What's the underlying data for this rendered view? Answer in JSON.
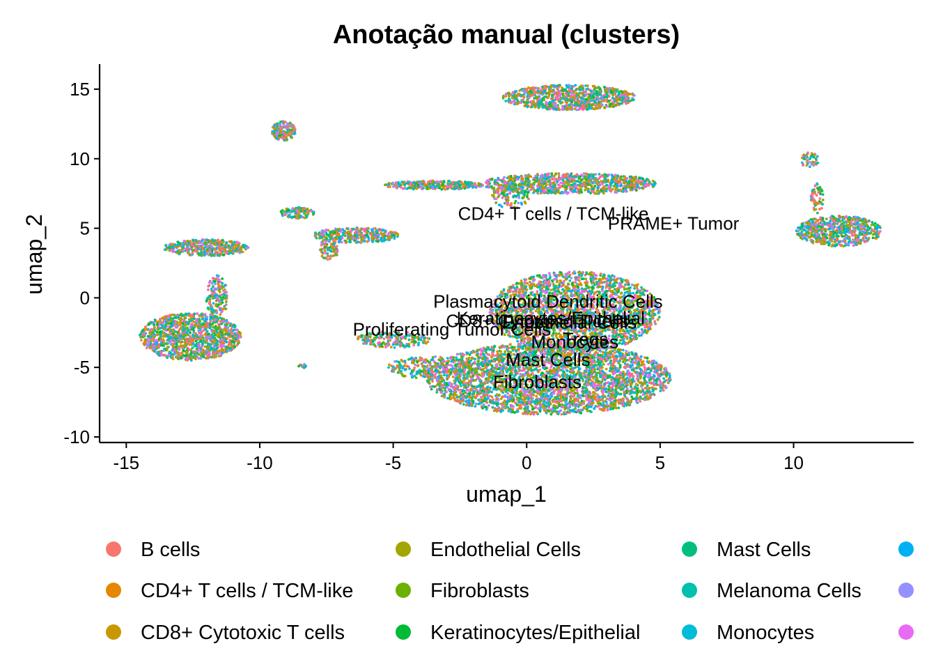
{
  "chart_data": {
    "type": "scatter",
    "title": "Anotação manual (clusters)",
    "xlabel": "umap_1",
    "ylabel": "umap_2",
    "xlim": [
      -16,
      14.5
    ],
    "ylim": [
      -10.4,
      16.8
    ],
    "xticks": [
      {
        "value": -15,
        "label": "-15"
      },
      {
        "value": -10,
        "label": "-10"
      },
      {
        "value": -5,
        "label": "-5"
      },
      {
        "value": 0,
        "label": "0"
      },
      {
        "value": 5,
        "label": "5"
      },
      {
        "value": 10,
        "label": "10"
      }
    ],
    "yticks": [
      {
        "value": -10,
        "label": "-10"
      },
      {
        "value": -5,
        "label": "-5"
      },
      {
        "value": 0,
        "label": "0"
      },
      {
        "value": 5,
        "label": "5"
      },
      {
        "value": 10,
        "label": "10"
      },
      {
        "value": 15,
        "label": "15"
      }
    ],
    "grid": false,
    "legend_position": "bottom",
    "legend": [
      {
        "name": "B cells",
        "color": "#F8766D"
      },
      {
        "name": "CD4+ T cells / TCM-like",
        "color": "#E58700"
      },
      {
        "name": "CD8+ Cytotoxic T cells",
        "color": "#C99800"
      },
      {
        "name": "Endothelial Cells",
        "color": "#A3A500"
      },
      {
        "name": "Fibroblasts",
        "color": "#6BB100"
      },
      {
        "name": "Keratinocytes/Epithelial",
        "color": "#00BA38"
      },
      {
        "name": "Mast Cells",
        "color": "#00BF7D"
      },
      {
        "name": "Melanoma Cells",
        "color": "#00C0AF"
      },
      {
        "name": "Monocytes",
        "color": "#00BCD8"
      },
      {
        "name": "",
        "color": "#00B0F6"
      },
      {
        "name": "",
        "color": "#9590FF"
      },
      {
        "name": "",
        "color": "#E76BF3"
      }
    ],
    "point_colors": [
      "#F8766D",
      "#E58700",
      "#C99800",
      "#A3A500",
      "#6BB100",
      "#00BA38",
      "#00BF7D",
      "#00C0AF",
      "#00BCD8",
      "#00B0F6",
      "#9590FF",
      "#E76BF3",
      "#FF62BC"
    ],
    "clusters": [
      {
        "cx": 1.6,
        "cy": 14.4,
        "rx": 2.5,
        "ry": 0.9,
        "n": 900
      },
      {
        "cx": -9.1,
        "cy": 12.0,
        "rx": 0.45,
        "ry": 0.7,
        "n": 160
      },
      {
        "cx": 1.6,
        "cy": 8.2,
        "rx": 3.3,
        "ry": 0.75,
        "n": 900
      },
      {
        "cx": -3.5,
        "cy": 8.1,
        "rx": 1.9,
        "ry": 0.32,
        "n": 300
      },
      {
        "cx": -0.6,
        "cy": 7.3,
        "rx": 0.7,
        "ry": 0.9,
        "n": 110
      },
      {
        "cx": -8.6,
        "cy": 6.1,
        "rx": 0.65,
        "ry": 0.4,
        "n": 110
      },
      {
        "cx": -6.4,
        "cy": 4.5,
        "rx": 1.6,
        "ry": 0.55,
        "n": 320
      },
      {
        "cx": -7.4,
        "cy": 3.5,
        "rx": 0.35,
        "ry": 0.8,
        "n": 90
      },
      {
        "cx": -12.0,
        "cy": 3.6,
        "rx": 1.6,
        "ry": 0.6,
        "n": 420
      },
      {
        "cx": -11.6,
        "cy": 0.0,
        "rx": 0.4,
        "ry": 1.6,
        "n": 170
      },
      {
        "cx": -12.6,
        "cy": -2.8,
        "rx": 1.9,
        "ry": 1.7,
        "n": 1300
      },
      {
        "cx": -8.4,
        "cy": -4.9,
        "rx": 0.15,
        "ry": 0.15,
        "n": 12
      },
      {
        "cx": -5.0,
        "cy": -3.0,
        "rx": 1.4,
        "ry": 0.6,
        "n": 220
      },
      {
        "cx": -3.6,
        "cy": -5.0,
        "rx": 1.6,
        "ry": 0.8,
        "n": 260
      },
      {
        "cx": 1.8,
        "cy": -1.0,
        "rx": 3.2,
        "ry": 2.9,
        "n": 2500
      },
      {
        "cx": 0.8,
        "cy": -5.8,
        "rx": 4.6,
        "ry": 2.6,
        "n": 3600
      },
      {
        "cx": 11.7,
        "cy": 4.8,
        "rx": 1.6,
        "ry": 1.1,
        "n": 650
      },
      {
        "cx": 10.6,
        "cy": 9.9,
        "rx": 0.35,
        "ry": 0.55,
        "n": 45
      },
      {
        "cx": 10.9,
        "cy": 7.2,
        "rx": 0.25,
        "ry": 1.1,
        "n": 60
      }
    ],
    "cluster_labels": [
      {
        "text": "CD4+ T cells / TCM-like",
        "x": 1.0,
        "y": 5.6
      },
      {
        "text": "PRAME+ Tumor",
        "x": 5.5,
        "y": 4.9
      },
      {
        "text": "Plasmacytoid Dendritic Cells",
        "x": 0.8,
        "y": -0.7
      },
      {
        "text": "Keratinocytes/Epithelial",
        "x": 0.9,
        "y": -1.9
      },
      {
        "text": "CD8+ Cytotoxic T cells",
        "x": 0.4,
        "y": -2.1
      },
      {
        "text": "Endothelial Cells",
        "x": 1.6,
        "y": -2.2
      },
      {
        "text": "Proliferating Tumor Cells",
        "x": -2.8,
        "y": -2.7
      },
      {
        "text": "Tregs",
        "x": 2.2,
        "y": -3.4
      },
      {
        "text": "Monocytes",
        "x": 1.8,
        "y": -3.6
      },
      {
        "text": "Mast Cells",
        "x": 0.8,
        "y": -4.9
      },
      {
        "text": "Fibroblasts",
        "x": 0.4,
        "y": -6.5
      }
    ]
  }
}
